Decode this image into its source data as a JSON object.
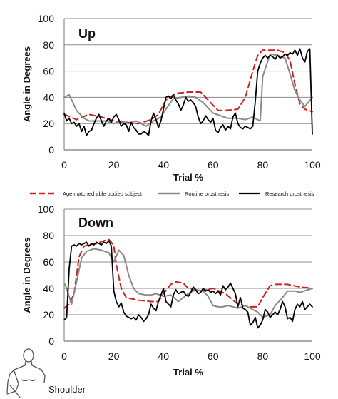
{
  "figure": {
    "caption": "Shoulder"
  },
  "legend": [
    {
      "name": "Age matched able bodied subject",
      "color": "#cc2222",
      "dash": "8,5",
      "width": 2
    },
    {
      "name": "Routine prosthesis",
      "color": "#8a8a8a",
      "dash": "",
      "width": 2
    },
    {
      "name": "Research prosthesis",
      "color": "#000000",
      "dash": "",
      "width": 1.8
    }
  ],
  "chart_data": [
    {
      "type": "line",
      "title": "Up",
      "xlabel": "Trial %",
      "ylabel": "Angle in Degrees",
      "xlim": [
        0,
        100
      ],
      "ylim": [
        0,
        100
      ],
      "xticks": [
        0,
        20,
        40,
        60,
        80,
        100
      ],
      "yticks": [
        0,
        20,
        40,
        60,
        80,
        100
      ],
      "grid": "horizontal",
      "series": [
        {
          "name": "Age matched able bodied subject",
          "color": "#cc2222",
          "x": [
            0,
            5,
            10,
            15,
            20,
            25,
            30,
            35,
            38,
            41,
            45,
            50,
            55,
            58,
            62,
            65,
            70,
            73,
            76,
            78,
            80,
            83,
            86,
            89,
            91,
            93,
            95,
            97,
            100
          ],
          "y": [
            27,
            23,
            27,
            25,
            22,
            21,
            20,
            23,
            27,
            38,
            43,
            44,
            44,
            38,
            30,
            30,
            31,
            40,
            60,
            72,
            76,
            76,
            76,
            74,
            68,
            50,
            35,
            31,
            29
          ]
        },
        {
          "name": "Routine prosthesis",
          "color": "#8a8a8a",
          "x": [
            0,
            2,
            5,
            8,
            10,
            13,
            17,
            20,
            23,
            26,
            29,
            31,
            33,
            36,
            39,
            41,
            44,
            47,
            50,
            53,
            56,
            60,
            63,
            66,
            70,
            73,
            76,
            79,
            80,
            83,
            86,
            89,
            91,
            93,
            95,
            97,
            100
          ],
          "y": [
            40,
            42,
            30,
            24,
            22,
            22,
            22,
            20,
            22,
            20,
            22,
            20,
            18,
            22,
            25,
            31,
            39,
            40,
            41,
            40,
            36,
            28,
            26,
            24,
            24,
            23,
            25,
            22,
            56,
            73,
            72,
            70,
            58,
            45,
            38,
            33,
            40
          ]
        },
        {
          "name": "Research prosthesis",
          "color": "#000000",
          "x": [
            0,
            1,
            2,
            3,
            4,
            5,
            6,
            7,
            8,
            9,
            10,
            11,
            12,
            13,
            14,
            15,
            16,
            17,
            18,
            19,
            20,
            21,
            22,
            23,
            24,
            25,
            26,
            27,
            28,
            29,
            30,
            31,
            32,
            33,
            34,
            35,
            36,
            37,
            38,
            39,
            40,
            41,
            42,
            43,
            44,
            45,
            46,
            47,
            48,
            49,
            50,
            51,
            52,
            53,
            54,
            55,
            56,
            57,
            58,
            59,
            60,
            61,
            62,
            63,
            64,
            65,
            66,
            67,
            68,
            69,
            70,
            71,
            72,
            73,
            74,
            75,
            76,
            77,
            78,
            79,
            80,
            81,
            82,
            83,
            84,
            85,
            86,
            87,
            88,
            89,
            90,
            91,
            92,
            93,
            94,
            95,
            96,
            97,
            98,
            99,
            100
          ],
          "y": [
            28,
            22,
            24,
            20,
            21,
            18,
            20,
            14,
            18,
            11,
            14,
            15,
            20,
            24,
            27,
            22,
            18,
            22,
            24,
            21,
            25,
            27,
            23,
            18,
            20,
            19,
            14,
            21,
            17,
            15,
            12,
            12,
            14,
            13,
            11,
            22,
            28,
            23,
            17,
            22,
            31,
            40,
            41,
            39,
            42,
            38,
            35,
            30,
            34,
            40,
            37,
            38,
            36,
            33,
            25,
            20,
            22,
            26,
            23,
            21,
            24,
            15,
            13,
            17,
            19,
            15,
            18,
            16,
            25,
            28,
            20,
            17,
            16,
            18,
            17,
            16,
            18,
            37,
            60,
            66,
            70,
            72,
            70,
            72,
            71,
            69,
            72,
            70,
            71,
            73,
            72,
            74,
            73,
            76,
            72,
            77,
            70,
            67,
            75,
            77,
            12
          ]
        }
      ]
    },
    {
      "type": "line",
      "title": "Down",
      "xlabel": "Trial %",
      "ylabel": "Angle in Degrees",
      "xlim": [
        0,
        100
      ],
      "ylim": [
        0,
        100
      ],
      "xticks": [
        0,
        20,
        40,
        60,
        80,
        100
      ],
      "yticks": [
        0,
        20,
        40,
        60,
        80,
        100
      ],
      "grid": "horizontal",
      "series": [
        {
          "name": "Age matched able bodied subject",
          "color": "#cc2222",
          "x": [
            0,
            2,
            4,
            5,
            6,
            8,
            10,
            13,
            16,
            18,
            19,
            20,
            21,
            23,
            25,
            30,
            35,
            38,
            40,
            43,
            45,
            48,
            50,
            55,
            60,
            65,
            70,
            75,
            78,
            80,
            83,
            85,
            90,
            95,
            100
          ],
          "y": [
            25,
            28,
            36,
            50,
            64,
            72,
            73,
            74,
            76,
            77,
            75,
            72,
            58,
            40,
            33,
            31,
            30,
            30,
            36,
            43,
            45,
            44,
            40,
            38,
            40,
            36,
            28,
            26,
            26,
            33,
            42,
            43,
            43,
            41,
            40
          ]
        },
        {
          "name": "Routine prosthesis",
          "color": "#8a8a8a",
          "x": [
            0,
            1,
            3,
            5,
            7,
            9,
            12,
            15,
            18,
            20,
            22,
            24,
            26,
            28,
            30,
            33,
            35,
            37,
            40,
            43,
            46,
            50,
            53,
            56,
            58,
            60,
            62,
            64,
            66,
            68,
            70,
            73,
            75,
            78,
            80,
            83,
            85,
            88,
            90,
            93,
            95,
            100
          ],
          "y": [
            44,
            40,
            28,
            45,
            63,
            68,
            70,
            69,
            67,
            60,
            69,
            65,
            50,
            40,
            36,
            35,
            35,
            36,
            34,
            35,
            30,
            36,
            39,
            38,
            34,
            27,
            26,
            26,
            27,
            26,
            25,
            27,
            25,
            22,
            18,
            20,
            27,
            33,
            38,
            38,
            37,
            40
          ]
        },
        {
          "name": "Research prosthesis",
          "color": "#000000",
          "x": [
            0,
            1,
            2,
            3,
            4,
            5,
            6,
            7,
            8,
            9,
            10,
            11,
            12,
            13,
            14,
            15,
            16,
            17,
            18,
            19,
            20,
            21,
            22,
            23,
            24,
            25,
            26,
            27,
            28,
            29,
            30,
            31,
            32,
            33,
            34,
            35,
            36,
            37,
            38,
            39,
            40,
            41,
            42,
            43,
            44,
            45,
            46,
            47,
            48,
            49,
            50,
            51,
            52,
            53,
            54,
            55,
            56,
            57,
            58,
            59,
            60,
            61,
            62,
            63,
            64,
            65,
            66,
            67,
            68,
            69,
            70,
            71,
            72,
            73,
            74,
            75,
            76,
            77,
            78,
            79,
            80,
            81,
            82,
            83,
            84,
            85,
            86,
            87,
            88,
            89,
            90,
            91,
            92,
            93,
            94,
            95,
            96,
            97,
            98,
            99,
            100
          ],
          "y": [
            16,
            18,
            55,
            72,
            73,
            72,
            74,
            73,
            74,
            75,
            72,
            74,
            73,
            75,
            74,
            73,
            75,
            74,
            76,
            72,
            38,
            30,
            26,
            29,
            22,
            19,
            18,
            17,
            18,
            16,
            20,
            18,
            15,
            17,
            20,
            28,
            25,
            23,
            30,
            35,
            40,
            30,
            28,
            26,
            35,
            39,
            36,
            37,
            38,
            35,
            34,
            37,
            41,
            39,
            36,
            37,
            40,
            38,
            39,
            37,
            38,
            36,
            38,
            35,
            42,
            39,
            41,
            44,
            40,
            36,
            26,
            33,
            25,
            24,
            22,
            12,
            14,
            18,
            10,
            12,
            16,
            24,
            22,
            18,
            20,
            22,
            20,
            24,
            30,
            26,
            17,
            18,
            15,
            24,
            28,
            26,
            30,
            24,
            26,
            28,
            26
          ]
        }
      ]
    }
  ]
}
